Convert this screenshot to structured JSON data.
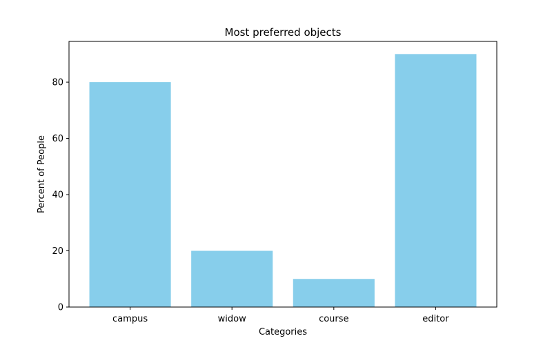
{
  "chart_data": {
    "type": "bar",
    "title": "Most preferred objects",
    "xlabel": "Categories",
    "ylabel": "Percent of People",
    "categories": [
      "campus",
      "widow",
      "course",
      "editor"
    ],
    "values": [
      80,
      20,
      10,
      90
    ],
    "ylim": [
      0,
      94.5
    ],
    "yticks": [
      0,
      20,
      40,
      60,
      80
    ],
    "bar_color": "#87ceeb",
    "grid": false,
    "legend": "none"
  }
}
